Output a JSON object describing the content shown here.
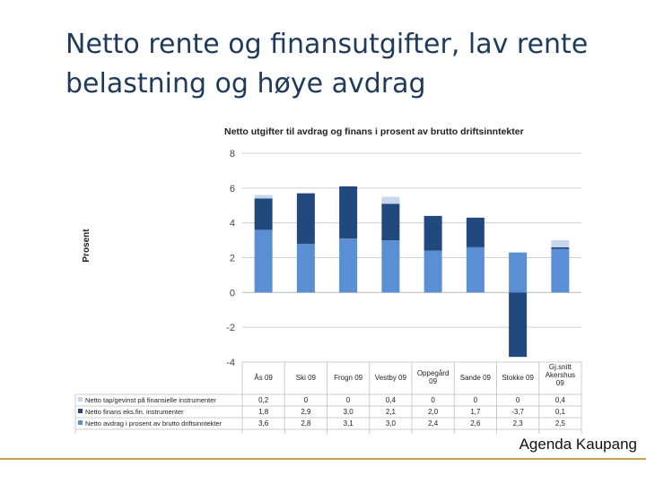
{
  "slide": {
    "title": "Netto rente og finansutgifter, lav rente belastning og høye avdrag",
    "footer": "Agenda Kaupang"
  },
  "chart_data": {
    "type": "bar",
    "stacked": true,
    "title": "Netto utgifter til avdrag og finans i prosent av brutto driftsinntekter",
    "ylabel": "Prosent",
    "xlabel": "",
    "ylim": [
      -4,
      8
    ],
    "yticks": [
      8,
      6,
      4,
      2,
      0,
      -2,
      -4
    ],
    "grid": true,
    "legend": "table-below",
    "categories": [
      "Ås 09",
      "Ski 09",
      "Frogn 09",
      "Vestby 09",
      "Oppegård 09",
      "Sande 09",
      "Stokke 09",
      "Gj.snitt Akershus 09"
    ],
    "series": [
      {
        "name": "Netto tap/gevinst på finansielle instrumenter",
        "color": "#c6d6ec",
        "values": [
          0.2,
          0,
          0,
          0.4,
          0,
          0,
          0,
          0.4
        ],
        "labels": [
          "0,2",
          "0",
          "0",
          "0,4",
          "0",
          "0",
          "0",
          "0,4"
        ]
      },
      {
        "name": "Netto finans eks.fin. instrumenter",
        "color": "#22497e",
        "values": [
          1.8,
          2.9,
          3.0,
          2.1,
          2.0,
          1.7,
          -3.7,
          0.1
        ],
        "labels": [
          "1,8",
          "2,9",
          "3,0",
          "2,1",
          "2,0",
          "1,7",
          "-3,7",
          "0,1"
        ]
      },
      {
        "name": "Netto avdrag i prosent av brutto driftsinntekter",
        "color": "#5b8fd3",
        "values": [
          3.6,
          2.8,
          3.1,
          3.0,
          2.4,
          2.6,
          2.3,
          2.5
        ],
        "labels": [
          "3,6",
          "2,8",
          "3,1",
          "3,0",
          "2,4",
          "2,6",
          "2,3",
          "2,5"
        ]
      }
    ]
  }
}
